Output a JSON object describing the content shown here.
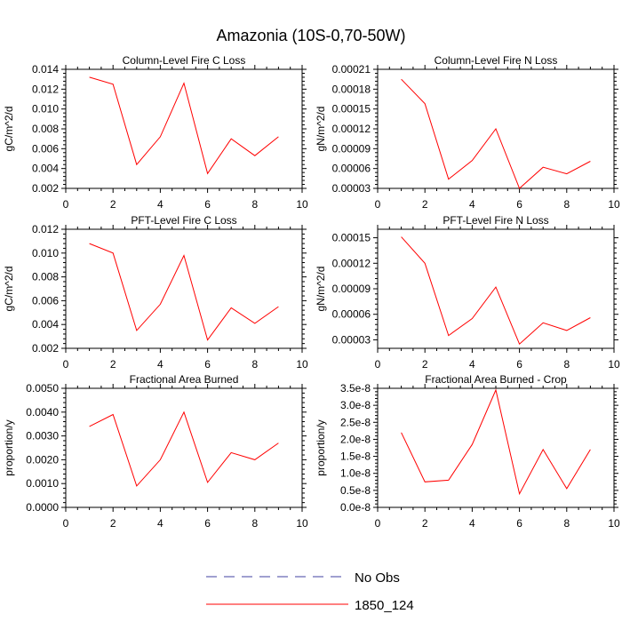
{
  "figure": {
    "title": "Amazonia (10S-0,70-50W)"
  },
  "legend": {
    "entries": [
      {
        "label": "No Obs",
        "color": "#4040a0",
        "dash": true
      },
      {
        "label": "1850_124",
        "color": "#ff0000",
        "dash": false
      }
    ]
  },
  "chart_data": [
    {
      "type": "line",
      "title": "Column-Level Fire C Loss",
      "ylabel": "gC/m^2/d",
      "xlim": [
        0,
        10
      ],
      "ylim": [
        0.002,
        0.014
      ],
      "xticks": [
        0,
        2,
        4,
        6,
        8,
        10
      ],
      "xtick_labels": [
        "0",
        "2",
        "4",
        "6",
        "8",
        "10"
      ],
      "yticks": [
        0.002,
        0.004,
        0.006,
        0.008,
        0.01,
        0.012,
        0.014
      ],
      "ytick_labels": [
        "0.002",
        "0.004",
        "0.006",
        "0.008",
        "0.010",
        "0.012",
        "0.014"
      ],
      "x": [
        1,
        2,
        3,
        4,
        5,
        6,
        7,
        8,
        9
      ],
      "series": [
        {
          "values": [
            0.0132,
            0.0125,
            0.0044,
            0.0072,
            0.0126,
            0.0035,
            0.007,
            0.0053,
            0.0072
          ]
        }
      ]
    },
    {
      "type": "line",
      "title": "Column-Level Fire N Loss",
      "ylabel": "gN/m^2/d",
      "xlim": [
        0,
        10
      ],
      "ylim": [
        3e-05,
        0.00021
      ],
      "xticks": [
        0,
        2,
        4,
        6,
        8,
        10
      ],
      "xtick_labels": [
        "0",
        "2",
        "4",
        "6",
        "8",
        "10"
      ],
      "yticks": [
        3e-05,
        6e-05,
        9e-05,
        0.00012,
        0.00015,
        0.00018,
        0.00021
      ],
      "ytick_labels": [
        "0.00003",
        "0.00006",
        "0.00009",
        "0.00012",
        "0.00015",
        "0.00018",
        "0.00021"
      ],
      "x": [
        1,
        2,
        3,
        4,
        5,
        6,
        7,
        8,
        9
      ],
      "series": [
        {
          "values": [
            0.000195,
            0.000158,
            4.4e-05,
            7.2e-05,
            0.00012,
            3e-05,
            6.2e-05,
            5.2e-05,
            7.1e-05
          ]
        }
      ]
    },
    {
      "type": "line",
      "title": "PFT-Level Fire C Loss",
      "ylabel": "gC/m^2/d",
      "xlim": [
        0,
        10
      ],
      "ylim": [
        0.002,
        0.012
      ],
      "xticks": [
        0,
        2,
        4,
        6,
        8,
        10
      ],
      "xtick_labels": [
        "0",
        "2",
        "4",
        "6",
        "8",
        "10"
      ],
      "yticks": [
        0.002,
        0.004,
        0.006,
        0.008,
        0.01,
        0.012
      ],
      "ytick_labels": [
        "0.002",
        "0.004",
        "0.006",
        "0.008",
        "0.010",
        "0.012"
      ],
      "x": [
        1,
        2,
        3,
        4,
        5,
        6,
        7,
        8,
        9
      ],
      "series": [
        {
          "values": [
            0.0108,
            0.01,
            0.0035,
            0.0057,
            0.0098,
            0.0027,
            0.0054,
            0.0041,
            0.0055
          ]
        }
      ]
    },
    {
      "type": "line",
      "title": "PFT-Level Fire N Loss",
      "ylabel": "gN/m^2/d",
      "xlim": [
        0,
        10
      ],
      "ylim": [
        2e-05,
        0.00016
      ],
      "xticks": [
        0,
        2,
        4,
        6,
        8,
        10
      ],
      "xtick_labels": [
        "0",
        "2",
        "4",
        "6",
        "8",
        "10"
      ],
      "yticks": [
        3e-05,
        6e-05,
        9e-05,
        0.00012,
        0.00015
      ],
      "ytick_labels": [
        "0.00003",
        "0.00006",
        "0.00009",
        "0.00012",
        "0.00015"
      ],
      "x": [
        1,
        2,
        3,
        4,
        5,
        6,
        7,
        8,
        9
      ],
      "series": [
        {
          "values": [
            0.000151,
            0.00012,
            3.5e-05,
            5.5e-05,
            9.2e-05,
            2.5e-05,
            5e-05,
            4.1e-05,
            5.6e-05
          ]
        }
      ]
    },
    {
      "type": "line",
      "title": "Fractional Area Burned",
      "ylabel": "proportion/y",
      "xlim": [
        0,
        10
      ],
      "ylim": [
        0,
        0.005
      ],
      "xticks": [
        0,
        2,
        4,
        6,
        8,
        10
      ],
      "xtick_labels": [
        "0",
        "2",
        "4",
        "6",
        "8",
        "10"
      ],
      "yticks": [
        0,
        0.001,
        0.002,
        0.003,
        0.004,
        0.005
      ],
      "ytick_labels": [
        "0.0000",
        "0.0010",
        "0.0020",
        "0.0030",
        "0.0040",
        "0.0050"
      ],
      "x": [
        1,
        2,
        3,
        4,
        5,
        6,
        7,
        8,
        9
      ],
      "series": [
        {
          "values": [
            0.0034,
            0.0039,
            0.0009,
            0.002,
            0.004,
            0.00105,
            0.0023,
            0.002,
            0.0027
          ]
        }
      ]
    },
    {
      "type": "line",
      "title": "Fractional Area Burned - Crop",
      "ylabel": "proportion/y",
      "xlim": [
        0,
        10
      ],
      "ylim": [
        0,
        3.5e-08
      ],
      "xticks": [
        0,
        2,
        4,
        6,
        8,
        10
      ],
      "xtick_labels": [
        "0",
        "2",
        "4",
        "6",
        "8",
        "10"
      ],
      "yticks": [
        0,
        5e-09,
        1e-08,
        1.5e-08,
        2e-08,
        2.5e-08,
        3e-08,
        3.5e-08
      ],
      "ytick_labels": [
        "0.0e-8",
        "0.5e-8",
        "1.0e-8",
        "1.5e-8",
        "2.0e-8",
        "2.5e-8",
        "3.0e-8",
        "3.5e-8"
      ],
      "x": [
        1,
        2,
        3,
        4,
        5,
        6,
        7,
        8,
        9
      ],
      "series": [
        {
          "values": [
            2.2e-08,
            7.5e-09,
            8e-09,
            1.85e-08,
            3.45e-08,
            4e-09,
            1.7e-08,
            5.5e-09,
            1.7e-08
          ]
        }
      ]
    }
  ]
}
